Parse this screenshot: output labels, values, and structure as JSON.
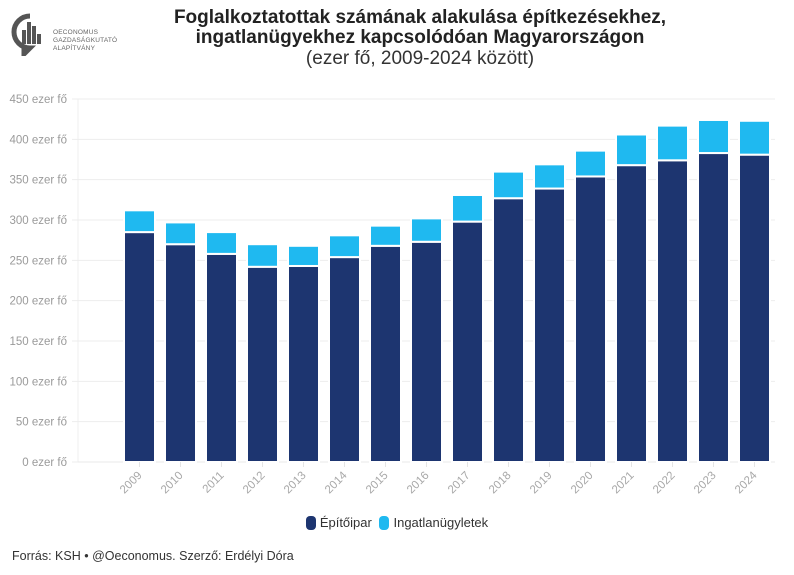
{
  "logo": {
    "icon": "oeconomus-logo-icon",
    "lines": [
      "OECONOMUS",
      "GAZDASÁGKUTATÓ",
      "ALAPÍTVÁNY"
    ]
  },
  "title": {
    "line1": "Foglalkoztatottak számának alakulása építkezésekhez,",
    "line2": "ingatlanügyekhez kapcsolódóan Magyarországon",
    "line3": "(ezer fő, 2009-2024 között)"
  },
  "legend": [
    {
      "label": "Építőipar",
      "color": "#1d3570"
    },
    {
      "label": "Ingatlanügyletek",
      "color": "#1fb9f0"
    }
  ],
  "source": "Forrás: KSH • @Oeconomus. Szerző: Erdélyi Dóra",
  "chart_data": {
    "type": "bar",
    "stacked": true,
    "title": "Foglalkoztatottak számának alakulása építkezésekhez, ingatlanügyekhez kapcsolódóan Magyarországon",
    "subtitle": "(ezer fő, 2009-2024 között)",
    "xlabel": "",
    "ylabel": "",
    "ylim": [
      0,
      450
    ],
    "yticks": [
      0,
      50,
      100,
      150,
      200,
      250,
      300,
      350,
      400,
      450
    ],
    "ytick_suffix": " ezer fő",
    "grid": true,
    "legend_position": "bottom-center",
    "categories": [
      "2009",
      "2010",
      "2011",
      "2012",
      "2013",
      "2014",
      "2015",
      "2016",
      "2017",
      "2018",
      "2019",
      "2020",
      "2021",
      "2022",
      "2023",
      "2024"
    ],
    "series": [
      {
        "name": "Építőipar",
        "color": "#1d3570",
        "values": [
          285,
          270,
          258,
          242,
          243,
          254,
          268,
          273,
          298,
          327,
          339,
          354,
          368,
          374,
          383,
          381
        ]
      },
      {
        "name": "Ingatlanügyletek",
        "color": "#1fb9f0",
        "values": [
          27,
          27,
          27,
          28,
          25,
          27,
          25,
          29,
          33,
          33,
          30,
          32,
          38,
          43,
          41,
          42
        ]
      }
    ]
  }
}
